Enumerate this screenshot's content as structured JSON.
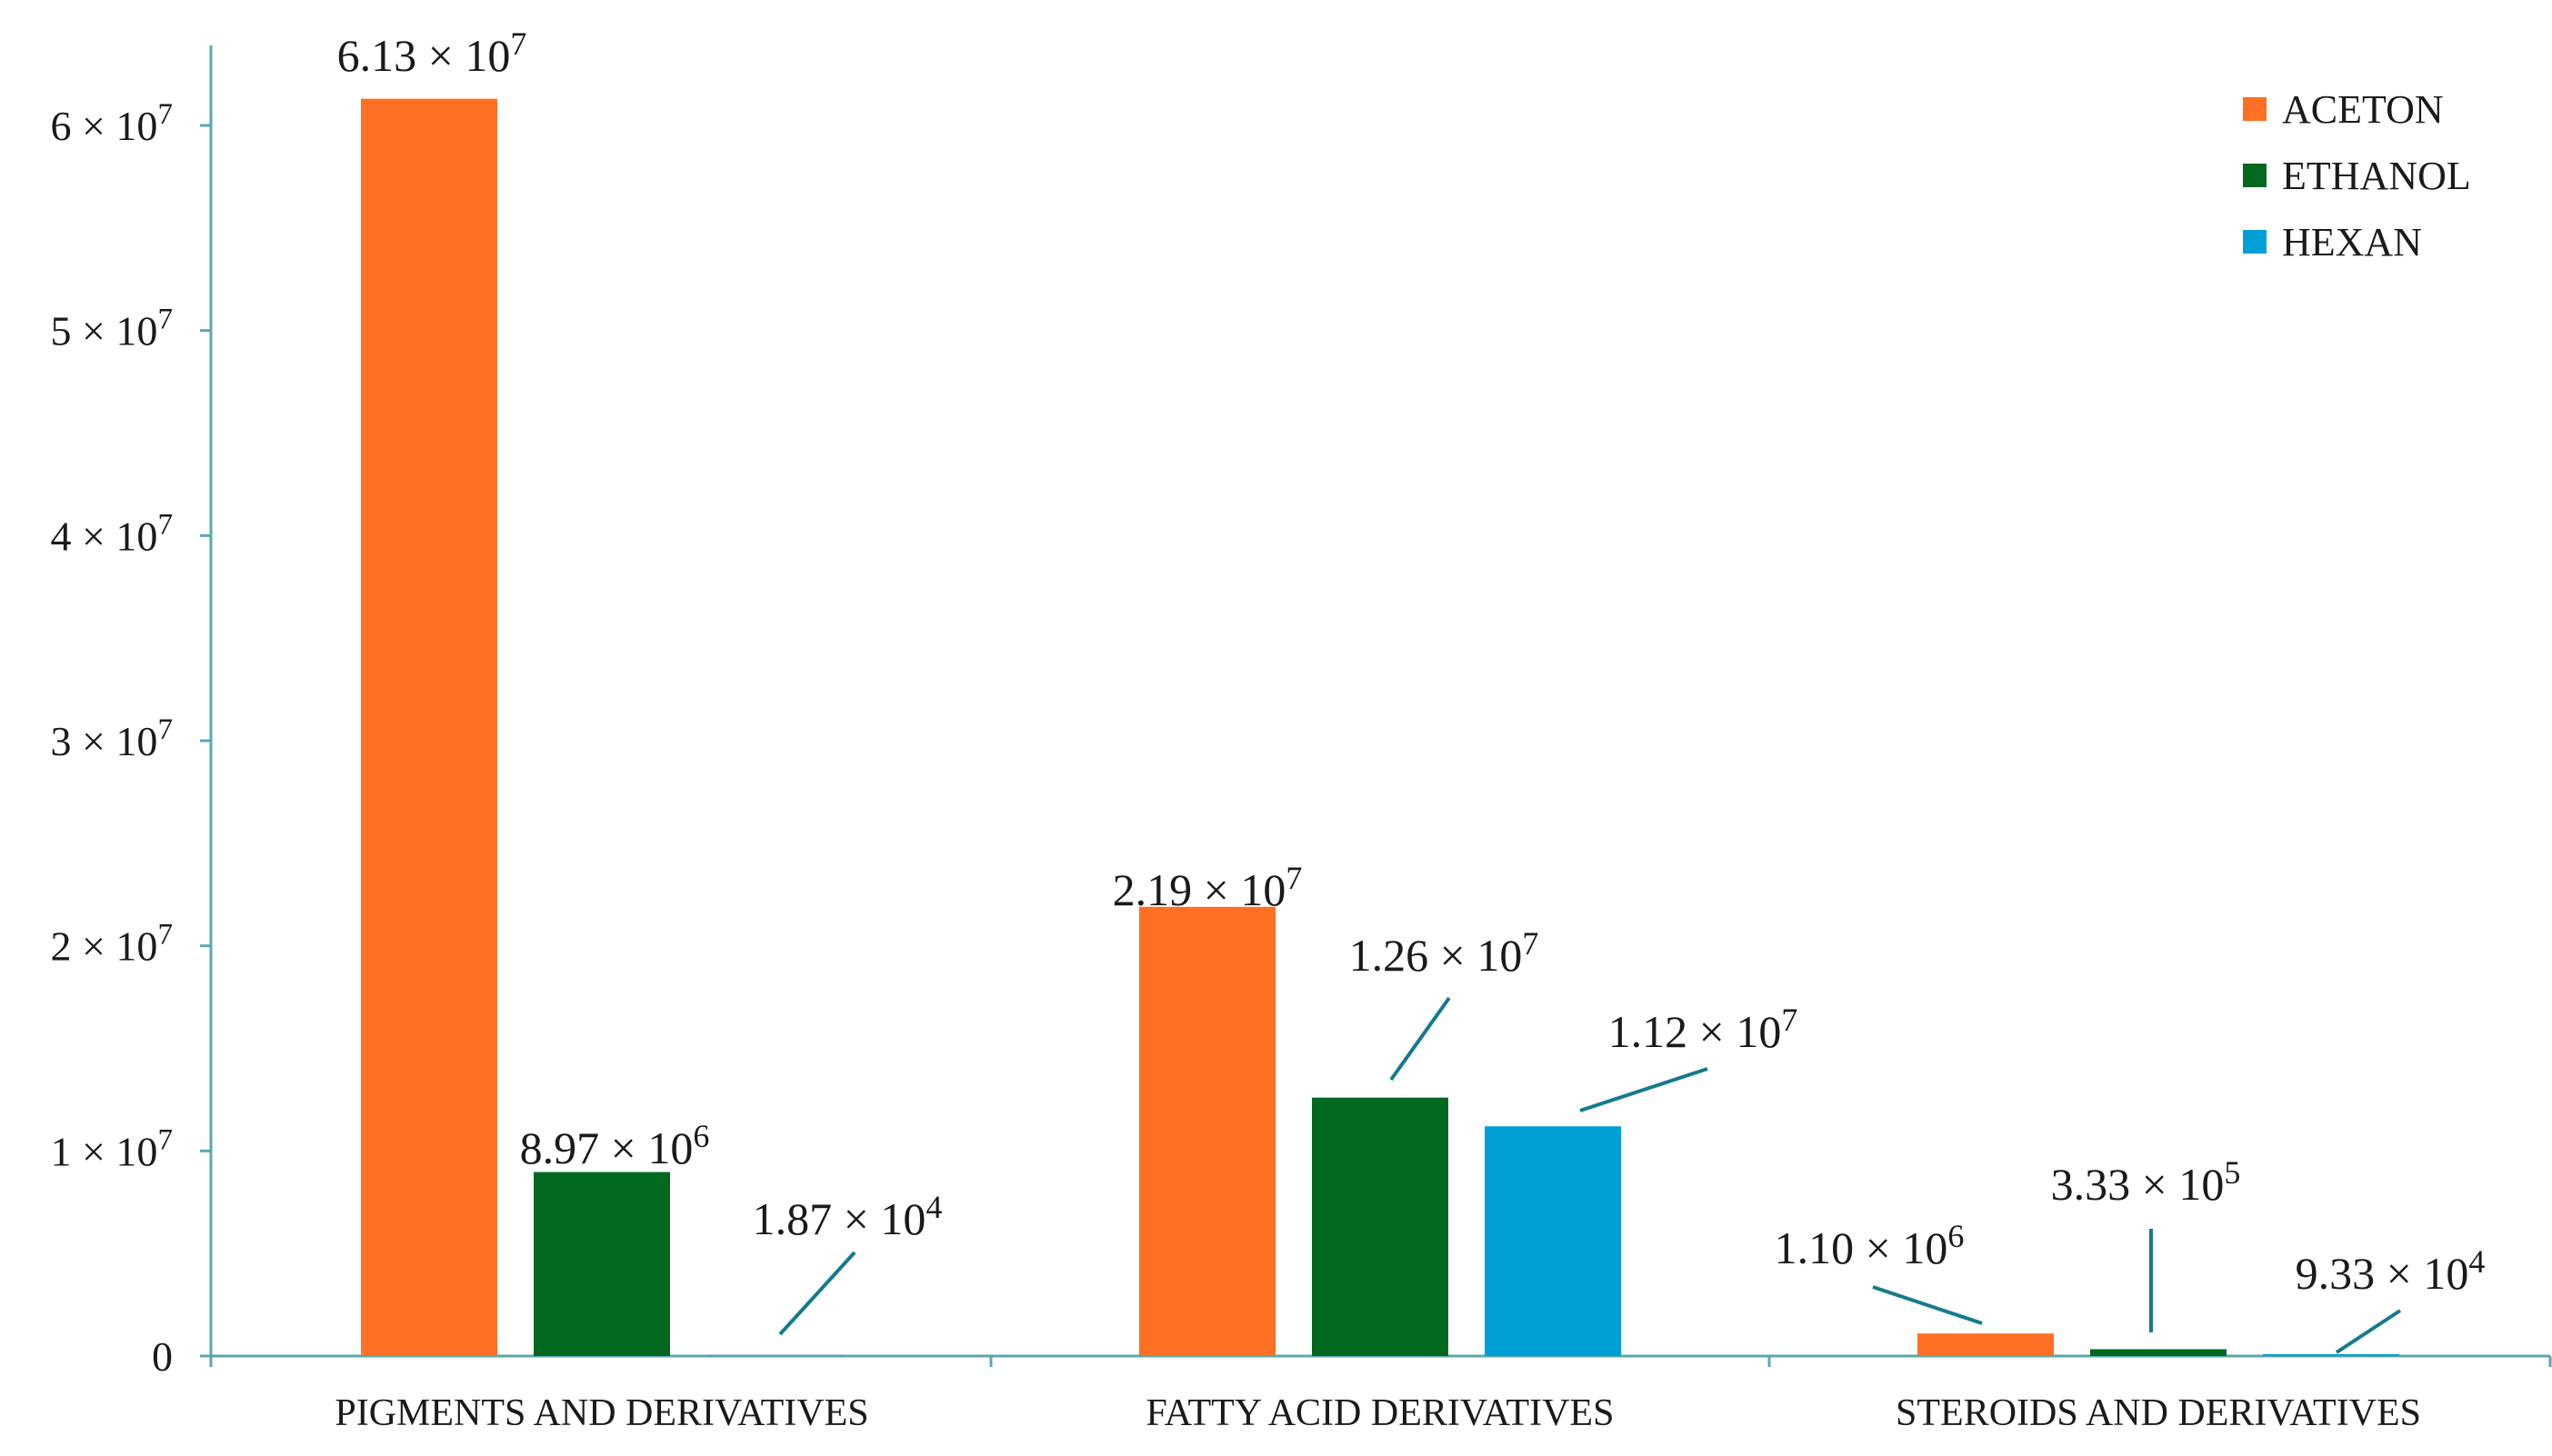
{
  "chart_data": {
    "type": "bar",
    "categories": [
      "PIGMENTS AND DERIVATIVES",
      "FATTY ACID DERIVATIVES",
      "STEROIDS AND DERIVATIVES"
    ],
    "series": [
      {
        "name": "ACETON",
        "color": "#ff6f24",
        "values": [
          61300000,
          21900000,
          1100000
        ],
        "value_labels": [
          {
            "base": "6.13 × 10",
            "exp": "7"
          },
          {
            "base": "2.19 × 10",
            "exp": "7"
          },
          {
            "base": "1.10 × 10",
            "exp": "6"
          }
        ]
      },
      {
        "name": "ETHANOL",
        "color": "#02681f",
        "values": [
          8970000,
          12600000,
          333000
        ],
        "value_labels": [
          {
            "base": "8.97 × 10",
            "exp": "6"
          },
          {
            "base": "1.26 × 10",
            "exp": "7"
          },
          {
            "base": "3.33 × 10",
            "exp": "5"
          }
        ]
      },
      {
        "name": "HEXAN",
        "color": "#00a0d6",
        "values": [
          18700,
          11200000,
          93300
        ],
        "value_labels": [
          {
            "base": "1.87 × 10",
            "exp": "4"
          },
          {
            "base": "1.12 × 10",
            "exp": "7"
          },
          {
            "base": "9.33 × 10",
            "exp": "4"
          }
        ]
      }
    ],
    "y_ticks": [
      {
        "value": 0,
        "base": "0",
        "exp": ""
      },
      {
        "value": 10000000,
        "base": "1 × 10",
        "exp": "7"
      },
      {
        "value": 20000000,
        "base": "2 × 10",
        "exp": "7"
      },
      {
        "value": 30000000,
        "base": "3 × 10",
        "exp": "7"
      },
      {
        "value": 40000000,
        "base": "4 × 10",
        "exp": "7"
      },
      {
        "value": 50000000,
        "base": "5 × 10",
        "exp": "7"
      },
      {
        "value": 60000000,
        "base": "6 × 10",
        "exp": "7"
      }
    ],
    "ylim": [
      0,
      64000000
    ],
    "title": "",
    "xlabel": "",
    "ylabel": "",
    "grid": false,
    "legend_position": "top-right",
    "axis_color": "#5aa7b4",
    "leader_color": "#137b8c"
  }
}
